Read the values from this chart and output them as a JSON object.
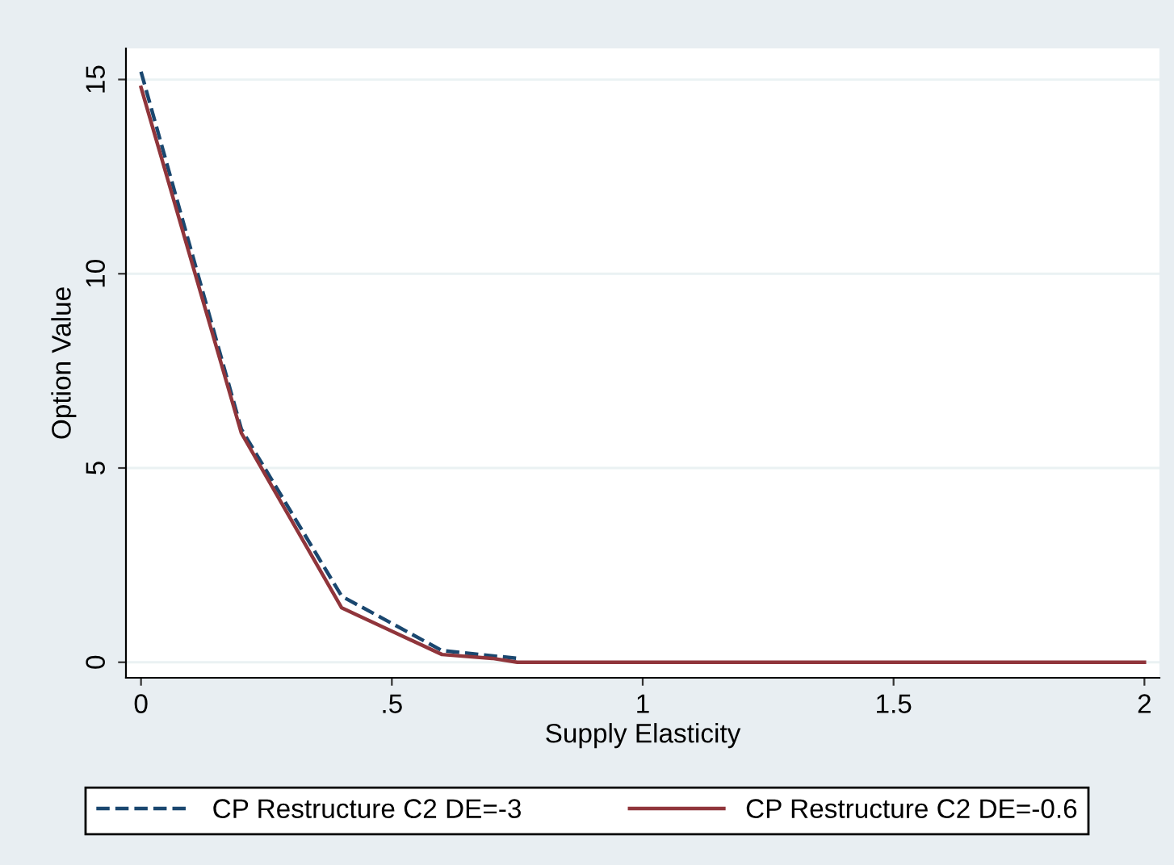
{
  "chart_data": {
    "type": "line",
    "xlabel": "Supply Elasticity",
    "ylabel": "Option Value",
    "xlim": [
      -0.03,
      2.03
    ],
    "ylim": [
      -0.4,
      15.8
    ],
    "xticks": [
      0,
      {
        "value": 0.5,
        "label": ".5"
      },
      1,
      1.5,
      2
    ],
    "yticks": [
      0,
      5,
      10,
      15
    ],
    "grid": "y",
    "legend": "bottom",
    "series": [
      {
        "name": "CP Restructure C2 DE=-3",
        "color": "#1a476f",
        "line_style": "dashed",
        "x": [
          0,
          0.2,
          0.4,
          0.5,
          0.6,
          0.75
        ],
        "values": [
          15.2,
          6.0,
          1.7,
          1.0,
          0.3,
          0.1
        ]
      },
      {
        "name": "CP Restructure C2 DE=-0.6",
        "color": "#90353b",
        "line_style": "solid",
        "x": [
          0,
          0.2,
          0.4,
          0.5,
          0.6,
          0.7,
          0.75,
          1,
          1.5,
          2
        ],
        "values": [
          14.8,
          5.9,
          1.4,
          0.8,
          0.2,
          0.1,
          0,
          0,
          0,
          0
        ]
      }
    ]
  }
}
